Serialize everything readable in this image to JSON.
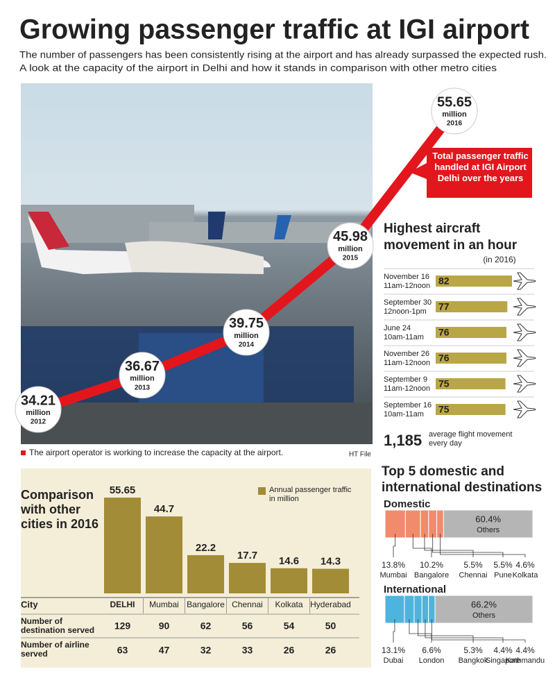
{
  "header": {
    "title": "Growing passenger traffic at IGI airport",
    "subtitle": [
      "The number of passengers has been consistently rising at the airport and has already surpassed the expected rush.",
      "A look at the capacity of the airport in Delhi and how it stands in comparison with other metro cities"
    ]
  },
  "photo": {
    "caption": "The airport operator is working to increase the capacity at the airport.",
    "credit": "HT File"
  },
  "stat": {
    "value": "1,185",
    "label": "average flight movement every day"
  },
  "destinations_title": "Top 5 domestic and international destinations",
  "table": {
    "header": "City",
    "rows": [
      {
        "label": "Number of destination served",
        "values": [
          129,
          90,
          62,
          56,
          54,
          50
        ]
      },
      {
        "label": "Number of airline served",
        "values": [
          63,
          47,
          32,
          33,
          26,
          26
        ]
      }
    ]
  },
  "chart_data": [
    {
      "type": "line",
      "title": "Total passenger traffic handled at IGI Airport Delhi over the years",
      "x": [
        "2012",
        "2013",
        "2014",
        "2015",
        "2016"
      ],
      "values": [
        34.21,
        36.67,
        39.75,
        45.98,
        55.65
      ],
      "unit": "million",
      "color": "#e3161d"
    },
    {
      "type": "hbar",
      "title": "Highest aircraft movement in an hour",
      "subtitle": "(in 2016)",
      "categories": [
        "November 16",
        "September 30",
        "June 24",
        "November 26",
        "September 9",
        "September 16"
      ],
      "times": [
        "11am-12noon",
        "12noon-1pm",
        "10am-11am",
        "11am-12noon",
        "11am-12noon",
        "10am-11am"
      ],
      "values": [
        82,
        77,
        76,
        76,
        75,
        75
      ],
      "color": "#b9a647"
    },
    {
      "type": "bar",
      "title": "Comparison with other cities in 2016",
      "legend": "Annual passenger traffic in million",
      "categories": [
        "DELHI",
        "Mumbai",
        "Bangalore",
        "Chennai",
        "Kolkata",
        "Hyderabad"
      ],
      "values": [
        55.65,
        44.7,
        22.2,
        17.7,
        14.6,
        14.3
      ],
      "color": "#a38c37"
    },
    {
      "type": "stacked",
      "title": "Domestic",
      "categories": [
        "Mumbai",
        "Bangalore",
        "Chennai",
        "Pune",
        "Kolkata",
        "Others"
      ],
      "values": [
        13.8,
        10.2,
        5.5,
        5.5,
        4.6,
        60.4
      ],
      "value_labels": [
        "13.8%",
        "10.2%",
        "5.5%",
        "5.5%",
        "4.6%",
        "60.4%"
      ],
      "color": "#f28b6c",
      "others_color": "#b5b5b5"
    },
    {
      "type": "stacked",
      "title": "International",
      "categories": [
        "Dubai",
        "London",
        "Bangkok",
        "Singapore",
        "Kathmandu",
        "Others"
      ],
      "values": [
        13.1,
        6.6,
        5.3,
        4.4,
        4.4,
        66.2
      ],
      "value_labels": [
        "13.1%",
        "6.6%",
        "5.3%",
        "4.4%",
        "4.4%",
        "66.2%"
      ],
      "color": "#4db5dd",
      "others_color": "#b5b5b5"
    }
  ]
}
